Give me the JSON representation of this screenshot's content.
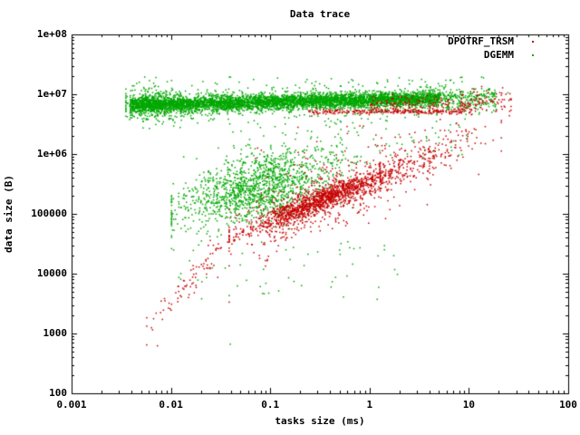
{
  "title": "Data trace",
  "axes": {
    "x": {
      "label": "tasks size (ms)",
      "scale": "log",
      "ticks": [
        {
          "value": 0.001,
          "label": "0.001"
        },
        {
          "value": 0.01,
          "label": "0.01"
        },
        {
          "value": 0.1,
          "label": "0.1"
        },
        {
          "value": 1,
          "label": "1"
        },
        {
          "value": 10,
          "label": "10"
        },
        {
          "value": 100,
          "label": "100"
        }
      ]
    },
    "y": {
      "label": "data size (B)",
      "scale": "log",
      "ticks": [
        {
          "value": 100,
          "label": "100"
        },
        {
          "value": 1000,
          "label": "1000"
        },
        {
          "value": 10000,
          "label": "10000"
        },
        {
          "value": 100000,
          "label": "100000"
        },
        {
          "value": 1000000,
          "label": "1e+06"
        },
        {
          "value": 10000000,
          "label": "1e+07"
        },
        {
          "value": 100000000,
          "label": "1e+08"
        }
      ]
    }
  },
  "legend": {
    "position": "top-right",
    "items": [
      {
        "label": "DPOTRF_TRSM",
        "color": "#c80000"
      },
      {
        "label": "DGEMM",
        "color": "#00a800"
      }
    ]
  },
  "colors": {
    "red": "#c80000",
    "green": "#00a800",
    "axis": "#000000",
    "background": "#ffffff"
  },
  "chart_data": {
    "type": "scatter",
    "title": "Data trace",
    "xlabel": "tasks size (ms)",
    "ylabel": "data size (B)",
    "x_scale": "log",
    "y_scale": "log",
    "xlim": [
      0.001,
      100
    ],
    "ylim": [
      100,
      100000000
    ],
    "grid": false,
    "legend_position": "top-right",
    "marker": "dot",
    "seed": 1337,
    "series": [
      {
        "name": "DGEMM",
        "color": "#00a800",
        "description": "dense horizontal band of ~7e6 B tasks from 0.004 to 18 ms, plus broad mid cloud centered near (0.07 ms, 3e5 B)",
        "clusters": [
          {
            "dist": "band",
            "n": 5200,
            "logx": [
              -2.42,
              0.7
            ],
            "y0": 6.83,
            "slope": 0.035,
            "sigma": 0.06,
            "sigma2": 0.13,
            "frac2": 0.15
          },
          {
            "dist": "band",
            "n": 260,
            "logx": [
              0.7,
              1.27
            ],
            "y0": 6.93,
            "slope": 0.0,
            "sigma": 0.09,
            "sigma2": 0.16,
            "frac2": 0.3
          },
          {
            "dist": "gauss",
            "n": 320,
            "cx": -2.22,
            "cy": 6.84,
            "sx": 0.16,
            "sy": 0.14,
            "rho": 0.0,
            "clip_x": [
              -2.46,
              -1.9
            ]
          },
          {
            "dist": "box",
            "n": 45,
            "logx": [
              -2.35,
              1.45
            ],
            "logy": [
              7.02,
              7.3
            ]
          },
          {
            "dist": "gauss",
            "n": 1450,
            "cx": -1.13,
            "cy": 5.45,
            "sx": 0.4,
            "sy": 0.32,
            "rho": 0.5,
            "clip_x": [
              -2.0,
              0.8
            ]
          },
          {
            "dist": "box",
            "n": 55,
            "logx": [
              -1.95,
              0.4
            ],
            "logy": [
              3.5,
              4.55
            ]
          },
          {
            "dist": "box",
            "n": 70,
            "logx": [
              -1.5,
              1.05
            ],
            "logy": [
              5.95,
              6.6
            ]
          }
        ],
        "outliers": [
          [
            0.039,
            680
          ]
        ]
      },
      {
        "name": "DPOTRF_TRSM",
        "color": "#c80000",
        "description": "diagonal power-law cloud from (0.007 ms, 2e3 B) through dense core near (0.3 ms, 1.6e5 B) up to (20 ms, 2e6 B), plus thin line hugging the bottom of the green band near 5e6 B",
        "clusters": [
          {
            "dist": "line",
            "n": 1700,
            "x_mean": -0.5,
            "x_sigma": 0.4,
            "x_clip": [
              -1.42,
              0.6
            ],
            "x0": -1.17,
            "y0": 4.79,
            "slope": 0.66,
            "y_sigma": 0.1,
            "y_sigma2": 0.28,
            "frac2": 0.3
          },
          {
            "dist": "line",
            "n": 230,
            "x_mean": 0.5,
            "x_sigma": 0.33,
            "x_clip": [
              0.1,
              1.32
            ],
            "x0": -1.17,
            "y0": 4.79,
            "slope": 0.66,
            "y_sigma": 0.16,
            "y_sigma2": 0.3,
            "frac2": 0.3
          },
          {
            "dist": "line",
            "n": 85,
            "x_mean": -1.78,
            "x_sigma": 0.26,
            "x_clip": [
              -2.25,
              -1.35
            ],
            "x0": -1.39,
            "y0": 4.64,
            "slope": 1.8,
            "y_sigma": 0.13,
            "y_sigma2": 0.2,
            "frac2": 0.2
          },
          {
            "dist": "band",
            "n": 240,
            "logx": [
              -0.62,
              0.95
            ],
            "y0": 6.72,
            "slope": 0.0,
            "sigma": 0.022
          },
          {
            "dist": "band",
            "n": 140,
            "logx": [
              0.0,
              1.05
            ],
            "y0": 6.84,
            "slope": 0.0,
            "sigma": 0.07
          },
          {
            "dist": "band",
            "n": 80,
            "logx": [
              0.9,
              1.42
            ],
            "y0": 6.9,
            "slope": 0.0,
            "sigma": 0.12
          },
          {
            "dist": "box",
            "n": 30,
            "logx": [
              -1.3,
              1.1
            ],
            "logy": [
              5.8,
              6.5
            ]
          }
        ],
        "outliers": [
          [
            0.0072,
            640
          ]
        ]
      }
    ]
  }
}
